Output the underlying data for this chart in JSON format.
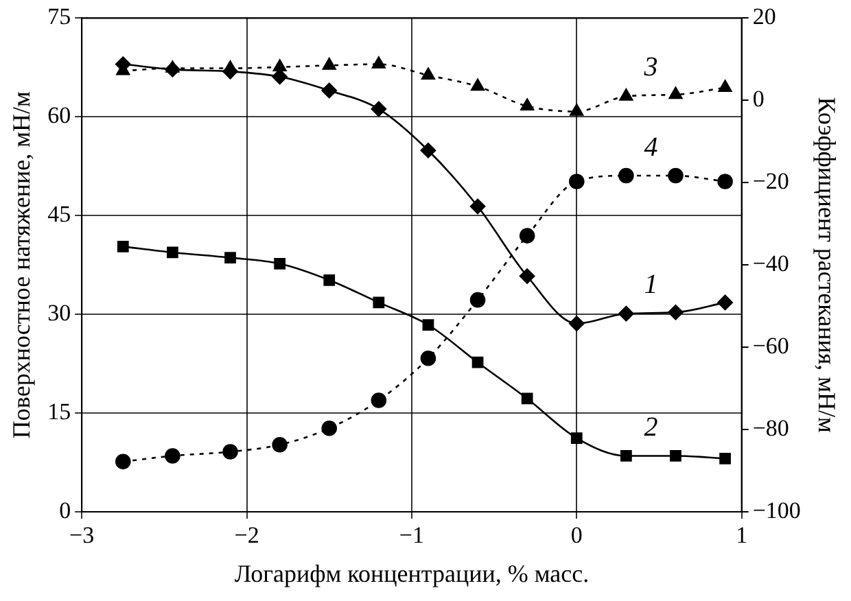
{
  "chart_data": {
    "type": "line",
    "xlabel": "Логарифм концентрации, % масс.",
    "ylabel": "Поверхностное натяжение, мН/м",
    "y2label": "Коэффициент растекания, мН/м",
    "x": [
      -2.75,
      -2.45,
      -2.1,
      -1.8,
      -1.5,
      -1.2,
      -0.9,
      -0.6,
      -0.3,
      0,
      0.3,
      0.6,
      0.9
    ],
    "series": [
      {
        "name": "1",
        "color": "#000000",
        "marker": "diamond",
        "line_style": "solid",
        "values": [
          68.0,
          67.2,
          66.9,
          66.1,
          64.0,
          61.2,
          54.9,
          46.4,
          35.8,
          28.6,
          30.1,
          30.3,
          31.8
        ]
      },
      {
        "name": "2",
        "color": "#000000",
        "marker": "square",
        "line_style": "solid",
        "values": [
          40.3,
          39.4,
          38.6,
          37.7,
          35.2,
          31.8,
          28.4,
          22.7,
          17.2,
          11.2,
          8.5,
          8.5,
          8.1
        ]
      },
      {
        "name": "3",
        "color": "#000000",
        "marker": "triangle",
        "line_style": "dotted",
        "axis": "y2",
        "values": [
          7.2,
          7.8,
          7.8,
          8.1,
          8.5,
          8.8,
          6.1,
          3.4,
          -1.4,
          -2.7,
          1.0,
          1.4,
          3.1
        ]
      },
      {
        "name": "4",
        "color": "#000000",
        "marker": "circle",
        "line_style": "dotted",
        "axis": "y2",
        "values": [
          -87.8,
          -86.4,
          -85.4,
          -83.7,
          -79.7,
          -72.9,
          -62.7,
          -48.5,
          -32.9,
          -19.7,
          -18.3,
          -18.3,
          -19.7
        ]
      }
    ],
    "xlim": [
      -3,
      1
    ],
    "xticks": [
      {
        "value": -3,
        "label": "−3"
      },
      {
        "value": -2,
        "label": "−2"
      },
      {
        "value": -1,
        "label": "−1"
      },
      0,
      1
    ],
    "ylim": [
      0,
      75
    ],
    "yticks": [
      0,
      15,
      30,
      45,
      60,
      75
    ],
    "y2lim": [
      -100,
      20
    ],
    "y2ticks": [
      {
        "value": -100,
        "label": "−100"
      },
      {
        "value": -80,
        "label": "−80"
      },
      {
        "value": -60,
        "label": "−60"
      },
      {
        "value": -40,
        "label": "−40"
      },
      {
        "value": -20,
        "label": "−20"
      },
      0,
      20
    ],
    "grid": true,
    "legend": false
  }
}
